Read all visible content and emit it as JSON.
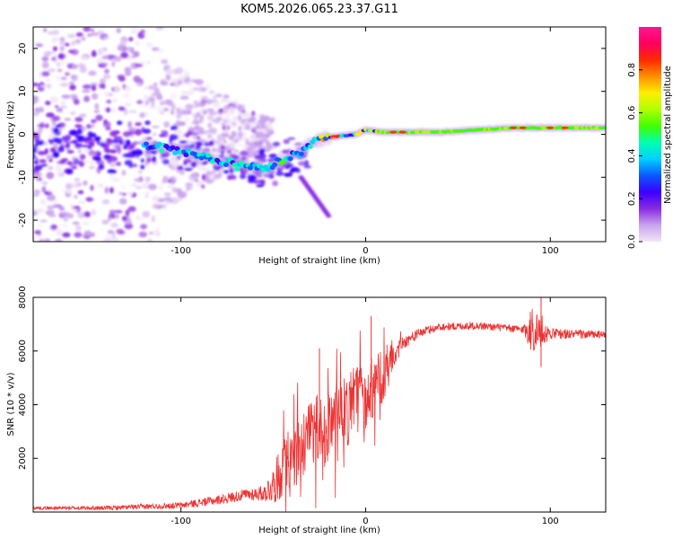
{
  "title": "KOM5.2026.065.23.37.G11",
  "chart_data": [
    {
      "type": "heatmap",
      "xlabel": "Height of straight line (km)",
      "ylabel": "Frequency (Hz)",
      "xlim": [
        -180,
        130
      ],
      "ylim": [
        -25,
        25
      ],
      "xticks": [
        -100,
        0,
        100
      ],
      "yticks": [
        -20,
        -10,
        0,
        10,
        20
      ],
      "xtick_labels": [
        "-100",
        "0",
        "100"
      ],
      "ytick_labels": [
        "-20",
        "-10",
        "0",
        "10",
        "20"
      ],
      "colorbar": {
        "label": "Normalized spectral amplitude",
        "range": [
          0,
          1
        ],
        "ticks": [
          "0.0",
          "0.2",
          "0.4",
          "0.6",
          "0.8"
        ],
        "colors": [
          "#f2e6f7",
          "#c9a3ee",
          "#8a2be2",
          "#3a00ff",
          "#0a58ff",
          "#00d0ff",
          "#00ffb0",
          "#40ff00",
          "#b0ff00",
          "#ffee00",
          "#ff9000",
          "#ff2a00",
          "#ff0060",
          "#ff1493"
        ]
      },
      "ridge": {
        "x": [
          -110,
          -90,
          -70,
          -55,
          -45,
          -35,
          -25,
          -15,
          -5,
          0,
          10,
          20,
          40,
          60,
          80,
          90,
          100,
          120,
          130
        ],
        "y": [
          -3,
          -5,
          -7,
          -8,
          -6,
          -4,
          -1,
          -0.5,
          0,
          1,
          0.5,
          0.5,
          0.5,
          1,
          1.5,
          1.5,
          1.5,
          1.5,
          1.5
        ]
      },
      "secondary_branch": {
        "x": [
          -35,
          -20
        ],
        "y": [
          -10,
          -19
        ]
      },
      "noise_region": {
        "x_from": -180,
        "x_to": -110,
        "freq_spread": 25
      }
    },
    {
      "type": "line",
      "xlabel": "Height of straight line (km)",
      "ylabel": "SNR (10 * v/v)",
      "xlim": [
        -180,
        130
      ],
      "ylim": [
        0,
        8000
      ],
      "xticks": [
        -100,
        0,
        100
      ],
      "yticks": [
        2000,
        4000,
        6000,
        8000
      ],
      "xtick_labels": [
        "-100",
        "0",
        "100"
      ],
      "ytick_labels": [
        "2000",
        "4000",
        "6000",
        "8000"
      ],
      "color": "#ee3333",
      "envelope": {
        "x": [
          -180,
          -140,
          -100,
          -80,
          -65,
          -55,
          -50,
          -45,
          -35,
          -25,
          -15,
          -5,
          5,
          10,
          15,
          20,
          30,
          40,
          60,
          85,
          90,
          95,
          100,
          130
        ],
        "mean": [
          150,
          150,
          250,
          450,
          650,
          700,
          1000,
          1600,
          2400,
          3000,
          3400,
          4100,
          4800,
          5000,
          5800,
          6300,
          6700,
          6900,
          6950,
          6800,
          6800,
          6700,
          6650,
          6600
        ],
        "jitter": [
          60,
          80,
          120,
          180,
          220,
          300,
          700,
          1100,
          1300,
          1500,
          1400,
          1400,
          1300,
          900,
          500,
          250,
          180,
          150,
          150,
          150,
          900,
          700,
          200,
          150
        ]
      },
      "peak_annotations": [
        {
          "x": 3,
          "y": 7300
        },
        {
          "x": 95,
          "y": 8000
        },
        {
          "x": -25,
          "y": 6100
        },
        {
          "x": 95,
          "y": 5400
        }
      ]
    }
  ]
}
